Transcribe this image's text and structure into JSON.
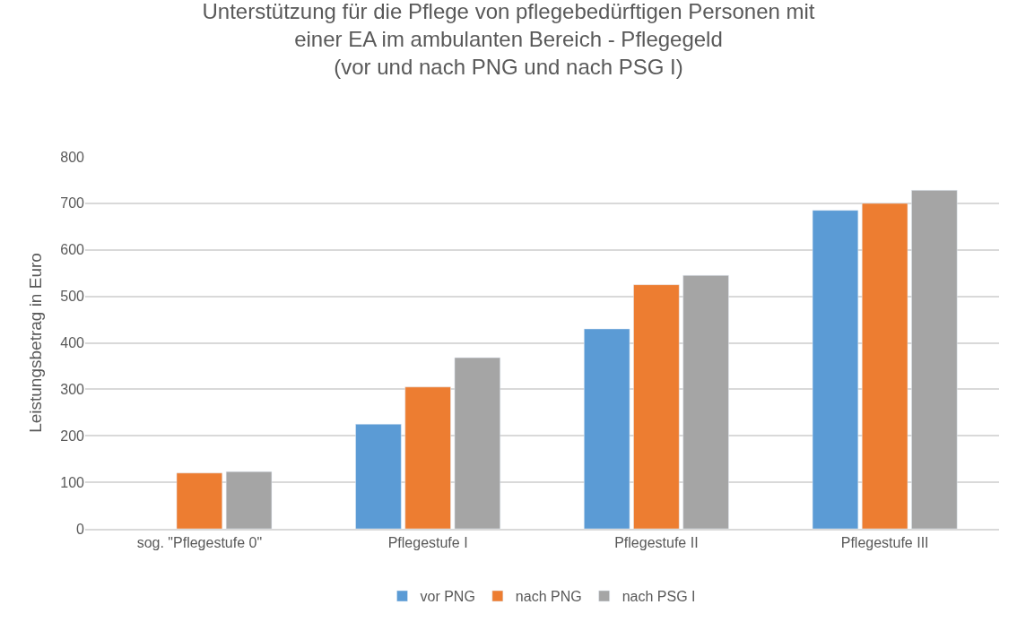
{
  "chart_data": {
    "type": "bar",
    "title": "Unterstützung für die Pflege von pflegebedürftigen Personen mit\neiner EA im ambulanten Bereich - Pflegegeld\n(vor und nach PNG und nach PSG I)",
    "ylabel": "Leistungsbetrag in Euro",
    "categories": [
      "sog. \"Pflegestufe 0\"",
      "Pflegestufe I",
      "Pflegestufe II",
      "Pflegestufe III"
    ],
    "series": [
      {
        "name": "vor PNG",
        "color": "#5b9bd5",
        "values": [
          null,
          225,
          430,
          685
        ]
      },
      {
        "name": "nach PNG",
        "color": "#ed7d31",
        "values": [
          120,
          305,
          525,
          700
        ]
      },
      {
        "name": "nach PSG I",
        "color": "#a5a5a5",
        "values": [
          123,
          368,
          545,
          728
        ]
      }
    ],
    "ylim": [
      0,
      800
    ],
    "yticks": [
      0,
      100,
      200,
      300,
      400,
      500,
      600,
      700,
      800
    ],
    "grid": "y",
    "legend": "bottom"
  }
}
